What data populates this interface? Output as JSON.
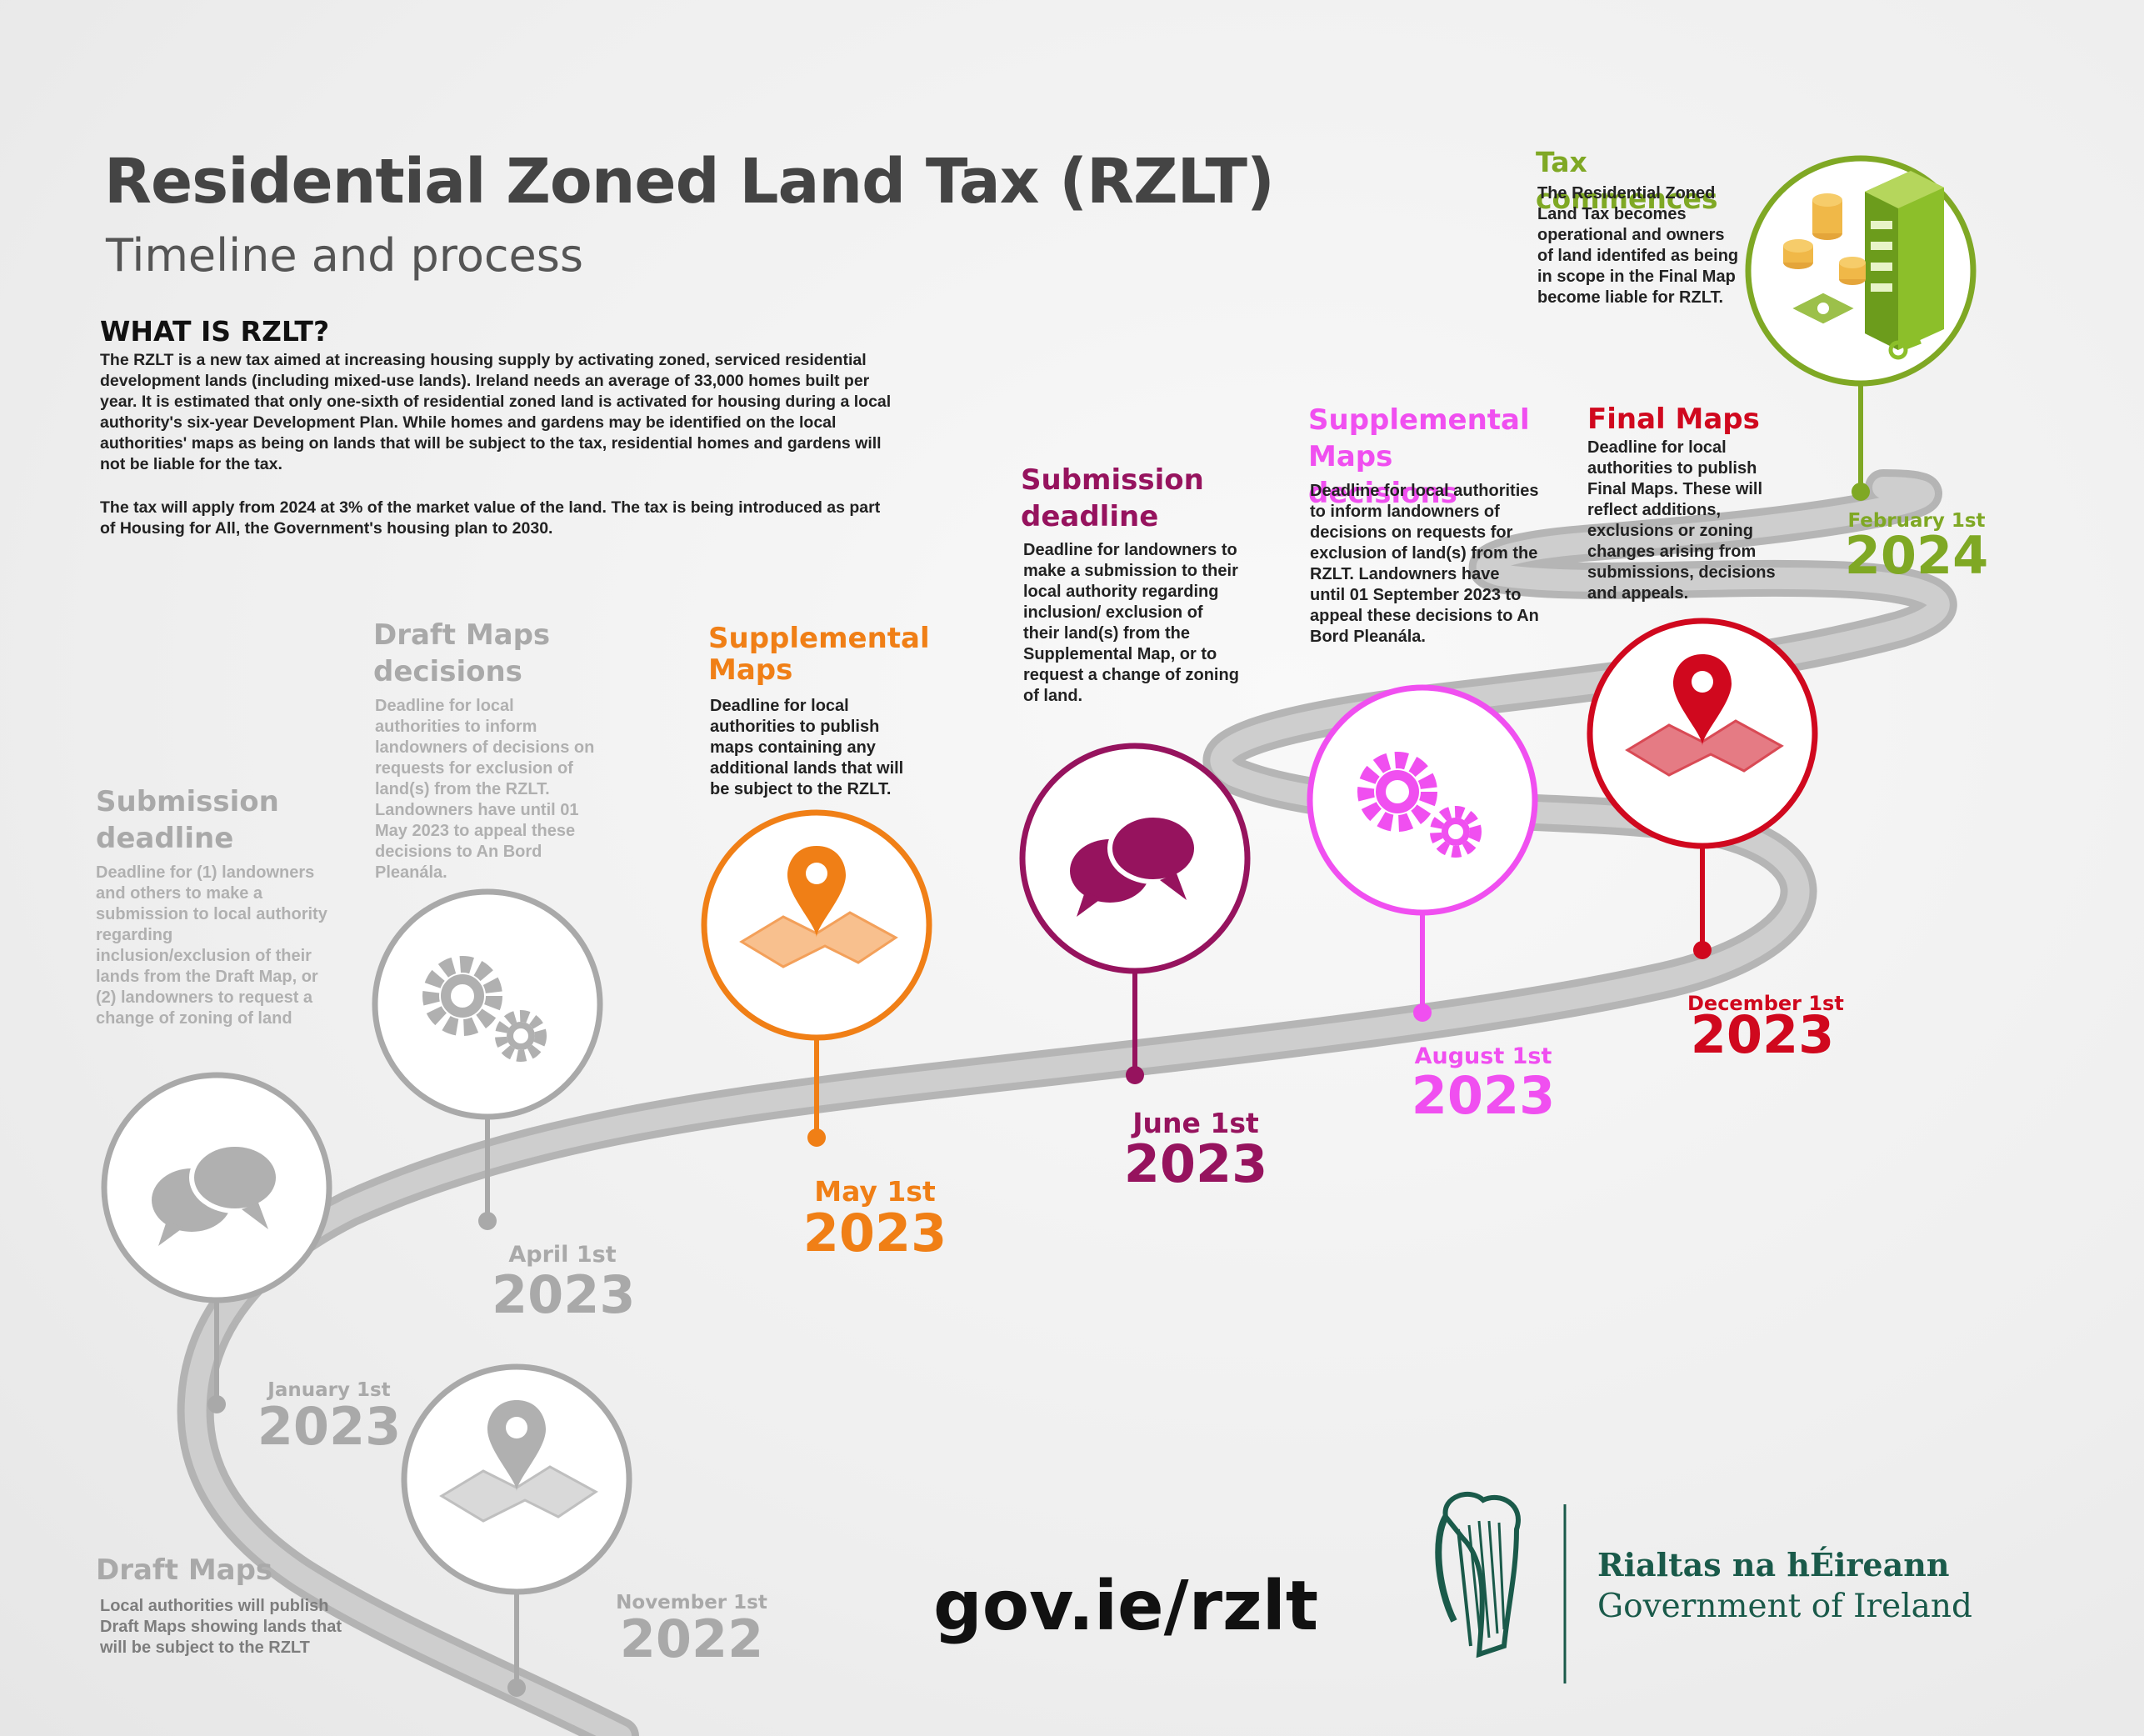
{
  "header": {
    "title": "Residential Zoned Land Tax (RZLT)",
    "subtitle": "Timeline and process"
  },
  "intro": {
    "heading": "WHAT IS RZLT?",
    "paragraph1": "The RZLT is a new tax aimed at increasing housing supply by activating zoned, serviced residential development lands (including mixed-use lands). Ireland needs an average of 33,000 homes built per year. It is estimated that only one-sixth of residential zoned land is activated for housing during a local authority's six-year Development Plan. While homes and gardens may be identified on the local authorities' maps as being on lands that will be subject to the tax, residential homes and gardens will not be liable for the tax.",
    "paragraph2": "The tax will apply from 2024 at 3% of the market value of the land. The tax is being introduced as part of Housing for All, the Government's housing plan to 2030."
  },
  "colors": {
    "grey": "#a9a9a9",
    "orange": "#f07f16",
    "purple": "#96135e",
    "pink": "#f04ff0",
    "red": "#d0081e",
    "green": "#7fa824",
    "road": "#b5b5b5",
    "harp": "#1a5a4a"
  },
  "events": [
    {
      "title": "Draft Maps",
      "description": "Local authorities will publish Draft Maps showing lands that will be subject to the RZLT",
      "date_label": "November 1st",
      "year": "2022",
      "icon": "map-pin-icon"
    },
    {
      "title": "Submission deadline",
      "description": "Deadline for (1) landowners and others to make a submission to local authority regarding inclusion/exclusion of their lands from the Draft Map, or (2) landowners to request a change of zoning of land",
      "date_label": "January 1st",
      "year": "2023",
      "icon": "speech-bubbles-icon"
    },
    {
      "title": "Draft Maps decisions",
      "description": "Deadline for local authorities to inform landowners of decisions on requests for exclusion of land(s) from the RZLT. Landowners have until 01 May 2023 to appeal these decisions to An Bord Pleanála.",
      "date_label": "April 1st",
      "year": "2023",
      "icon": "gears-icon"
    },
    {
      "title": "Supplemental Maps",
      "description": "Deadline for local authorities to publish maps containing any additional lands that will be subject to the RZLT.",
      "date_label": "May 1st",
      "year": "2023",
      "icon": "map-pin-icon"
    },
    {
      "title": "Submission deadline",
      "description": "Deadline for landowners to make a submission to their local authority regarding inclusion/ exclusion of their land(s) from the Supplemental Map, or to request a change of zoning of land.",
      "date_label": "June 1st",
      "year": "2023",
      "icon": "speech-bubbles-icon"
    },
    {
      "title": "Supplemental Maps decisions",
      "description": "Deadline for local authorities to inform landowners of decisions on requests for exclusion of land(s) from the RZLT. Landowners have until 01 September 2023 to appeal these decisions to An Bord Pleanála.",
      "date_label": "August 1st",
      "year": "2023",
      "icon": "gears-icon"
    },
    {
      "title": "Final Maps",
      "description": "Deadline for local authorities to publish Final Maps. These will reflect additions, exclusions or zoning changes arising from submissions, decisions and appeals.",
      "date_label": "December 1st",
      "year": "2023",
      "icon": "map-pin-icon"
    },
    {
      "title": "Tax commences",
      "description": "The Residential Zoned Land Tax becomes operational and owners of land identifed as being in scope in the Final Map become liable for RZLT.",
      "date_label": "February 1st",
      "year": "2024",
      "icon": "building-coins-icon"
    }
  ],
  "footer": {
    "url": "gov.ie/rzlt",
    "gov_irish": "Rialtas na hÉireann",
    "gov_english": "Government of Ireland"
  }
}
